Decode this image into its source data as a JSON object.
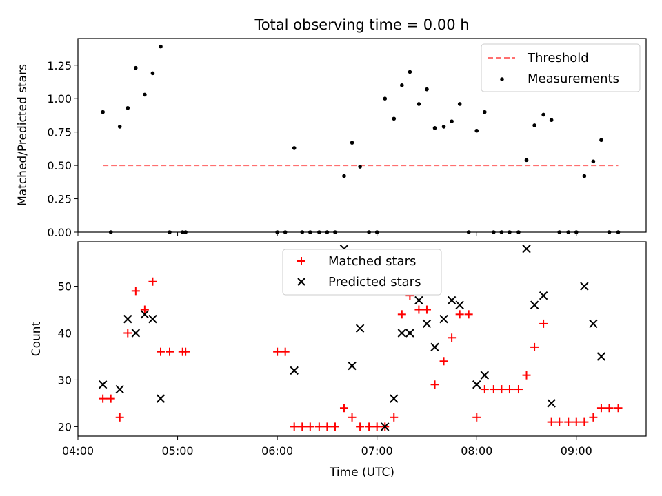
{
  "title": "Total observing time = 0.00 h",
  "chart_data": [
    {
      "type": "scatter",
      "ylabel": "Matched/Predicted stars",
      "ylim": [
        0,
        1.45
      ],
      "yticks": [
        0.0,
        0.25,
        0.5,
        0.75,
        1.0,
        1.25
      ],
      "ytick_labels": [
        "0.00",
        "0.25",
        "0.50",
        "0.75",
        "1.00",
        "1.25"
      ],
      "xlim_hours": [
        4.0,
        9.7
      ],
      "legend": {
        "position": "top-right",
        "entries": [
          "Threshold",
          "Measurements"
        ]
      },
      "series": [
        {
          "name": "Threshold",
          "style": "dashed-line",
          "color": "#ff7070",
          "x": [
            4.25,
            9.42
          ],
          "y": [
            0.5,
            0.5
          ]
        },
        {
          "name": "Measurements",
          "style": "dot",
          "color": "#000000",
          "x": [
            4.25,
            4.33,
            4.42,
            4.5,
            4.58,
            4.67,
            4.75,
            4.83,
            4.92,
            5.05,
            5.08,
            6.0,
            6.08,
            6.17,
            6.25,
            6.33,
            6.42,
            6.5,
            6.58,
            6.67,
            6.75,
            6.83,
            6.92,
            7.0,
            7.08,
            7.17,
            7.25,
            7.33,
            7.42,
            7.5,
            7.58,
            7.67,
            7.75,
            7.83,
            7.92,
            8.0,
            8.08,
            8.17,
            8.25,
            8.33,
            8.42,
            8.5,
            8.58,
            8.67,
            8.75,
            8.83,
            8.92,
            9.0,
            9.08,
            9.17,
            9.25,
            9.33,
            9.42
          ],
          "y": [
            0.9,
            0.0,
            0.79,
            0.93,
            1.23,
            1.03,
            1.19,
            1.39,
            0.0,
            0.0,
            0.0,
            0.0,
            0.0,
            0.63,
            0.0,
            0.0,
            0.0,
            0.0,
            0.0,
            0.42,
            0.67,
            0.49,
            0.0,
            0.0,
            1.0,
            0.85,
            1.1,
            1.2,
            0.96,
            1.07,
            0.78,
            0.79,
            0.83,
            0.96,
            0.0,
            0.76,
            0.9,
            0.0,
            0.0,
            0.0,
            0.0,
            0.54,
            0.8,
            0.88,
            0.84,
            0.0,
            0.0,
            0.0,
            0.42,
            0.53,
            0.69,
            0.0,
            0.0
          ]
        }
      ]
    },
    {
      "type": "scatter",
      "ylabel": "Count",
      "xlabel": "Time (UTC)",
      "ylim": [
        18,
        59.5
      ],
      "yticks": [
        20,
        30,
        40,
        50
      ],
      "ytick_labels": [
        "20",
        "30",
        "40",
        "50"
      ],
      "xlim_hours": [
        4.0,
        9.7
      ],
      "xticks_hours": [
        4,
        5,
        6,
        7,
        8,
        9
      ],
      "xtick_labels": [
        "04:00",
        "05:00",
        "06:00",
        "07:00",
        "08:00",
        "09:00"
      ],
      "legend": {
        "position": "top-center",
        "entries": [
          "Matched stars",
          "Predicted stars"
        ]
      },
      "series": [
        {
          "name": "Matched stars",
          "marker": "plus",
          "color": "#ff0000",
          "x": [
            4.25,
            4.33,
            4.42,
            4.5,
            4.58,
            4.67,
            4.75,
            4.83,
            4.92,
            5.05,
            5.08,
            6.0,
            6.08,
            6.17,
            6.25,
            6.33,
            6.42,
            6.5,
            6.58,
            6.67,
            6.75,
            6.83,
            6.92,
            7.0,
            7.08,
            7.17,
            7.25,
            7.33,
            7.42,
            7.5,
            7.58,
            7.67,
            7.75,
            7.83,
            7.92,
            8.0,
            8.08,
            8.17,
            8.25,
            8.33,
            8.42,
            8.5,
            8.58,
            8.67,
            8.75,
            8.83,
            8.92,
            9.0,
            9.08,
            9.17,
            9.25,
            9.33,
            9.42
          ],
          "y": [
            26,
            26,
            22,
            40,
            49,
            45,
            51,
            36,
            36,
            36,
            36,
            36,
            36,
            20,
            20,
            20,
            20,
            20,
            20,
            24,
            22,
            20,
            20,
            20,
            20,
            22,
            44,
            48,
            45,
            45,
            29,
            34,
            39,
            44,
            44,
            22,
            28,
            28,
            28,
            28,
            28,
            31,
            37,
            42,
            21,
            21,
            21,
            21,
            21,
            22,
            24,
            24,
            24
          ]
        },
        {
          "name": "Predicted stars",
          "marker": "x",
          "color": "#000000",
          "x": [
            4.25,
            4.42,
            4.5,
            4.58,
            4.67,
            4.75,
            4.83,
            6.17,
            6.67,
            6.75,
            6.83,
            7.08,
            7.17,
            7.25,
            7.33,
            7.42,
            7.5,
            7.58,
            7.67,
            7.75,
            7.83,
            8.0,
            8.08,
            8.5,
            8.58,
            8.67,
            8.75,
            9.08,
            9.17,
            9.25
          ],
          "y": [
            29,
            28,
            43,
            40,
            44,
            43,
            26,
            32,
            58,
            33,
            41,
            20,
            26,
            40,
            40,
            47,
            42,
            37,
            43,
            47,
            46,
            29,
            31,
            58,
            46,
            48,
            25,
            50,
            42,
            35
          ]
        }
      ]
    }
  ]
}
